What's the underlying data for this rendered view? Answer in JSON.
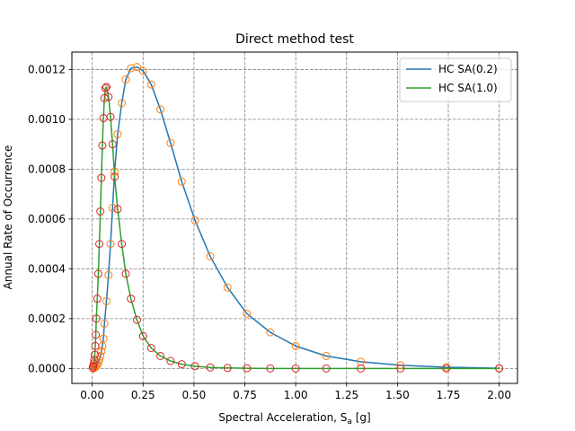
{
  "chart_data": {
    "type": "line",
    "title": "Direct method test",
    "xlabel_main": "Spectral Acceleration, S",
    "xlabel_sub": "a",
    "xlabel_unit": " [g]",
    "ylabel": "Annual Rate of Occurrence",
    "xlim": [
      -0.1,
      2.09
    ],
    "ylim": [
      -6e-05,
      0.00127
    ],
    "x_ticks": [
      0.0,
      0.25,
      0.5,
      0.75,
      1.0,
      1.25,
      1.5,
      1.75,
      2.0
    ],
    "x_tick_labels": [
      "0.00",
      "0.25",
      "0.50",
      "0.75",
      "1.00",
      "1.25",
      "1.50",
      "1.75",
      "2.00"
    ],
    "y_ticks": [
      0,
      0.0002,
      0.0004,
      0.0006,
      0.0008,
      0.001,
      0.0012
    ],
    "y_tick_labels": [
      "0.0000",
      "0.0002",
      "0.0004",
      "0.0006",
      "0.0008",
      "0.0010",
      "0.0012"
    ],
    "grid": true,
    "legend_position": "top-right",
    "series": [
      {
        "name": "HC SA(0.2)",
        "line_color": "#1f77b4",
        "marker_color": "#ff7f0e",
        "x": [
          0.005,
          0.01,
          0.015,
          0.02,
          0.025,
          0.03,
          0.035,
          0.04,
          0.045,
          0.05,
          0.055,
          0.06,
          0.07,
          0.08,
          0.09,
          0.1,
          0.11,
          0.125,
          0.145,
          0.165,
          0.19,
          0.22,
          0.25,
          0.29,
          0.335,
          0.385,
          0.44,
          0.505,
          0.58,
          0.665,
          0.76,
          0.875,
          1.0,
          1.15,
          1.32,
          1.515,
          1.74,
          2.0
        ],
        "y": [
          0.0,
          2e-06,
          5e-06,
          9e-06,
          1.5e-05,
          2.3e-05,
          3.5e-05,
          5e-05,
          7e-05,
          9e-05,
          0.00012,
          0.00018,
          0.00027,
          0.000375,
          0.0005,
          0.000645,
          0.00079,
          0.00094,
          0.001065,
          0.00116,
          0.001205,
          0.00121,
          0.001195,
          0.00114,
          0.00104,
          0.000905,
          0.00075,
          0.000595,
          0.00045,
          0.000325,
          0.00022,
          0.000145,
          9e-05,
          5e-05,
          2.7e-05,
          1.3e-05,
          5e-06,
          1e-06
        ]
      },
      {
        "name": "HC SA(1.0)",
        "line_color": "#2ca02c",
        "marker_color": "#d62728",
        "x": [
          0.0025,
          0.005,
          0.0075,
          0.01,
          0.0125,
          0.015,
          0.0175,
          0.02,
          0.025,
          0.03,
          0.035,
          0.04,
          0.045,
          0.05,
          0.055,
          0.06,
          0.065,
          0.07,
          0.08,
          0.09,
          0.1,
          0.11,
          0.125,
          0.145,
          0.165,
          0.19,
          0.22,
          0.25,
          0.29,
          0.335,
          0.385,
          0.44,
          0.505,
          0.58,
          0.665,
          0.76,
          0.875,
          1.0,
          1.15,
          1.32,
          1.515,
          1.74,
          2.0
        ],
        "y": [
          3e-06,
          1e-05,
          2e-05,
          3.5e-05,
          5.5e-05,
          9e-05,
          0.000135,
          0.0002,
          0.00028,
          0.00038,
          0.0005,
          0.00063,
          0.000765,
          0.000895,
          0.001005,
          0.001085,
          0.001125,
          0.00113,
          0.00109,
          0.00101,
          0.0009,
          0.00077,
          0.00064,
          0.0005,
          0.00038,
          0.00028,
          0.000195,
          0.00013,
          8.2e-05,
          5e-05,
          3e-05,
          1.7e-05,
          9e-06,
          4e-06,
          2e-06,
          1e-06,
          0.0,
          0.0,
          0.0,
          0.0,
          0.0,
          0.0,
          0.0
        ]
      }
    ]
  }
}
